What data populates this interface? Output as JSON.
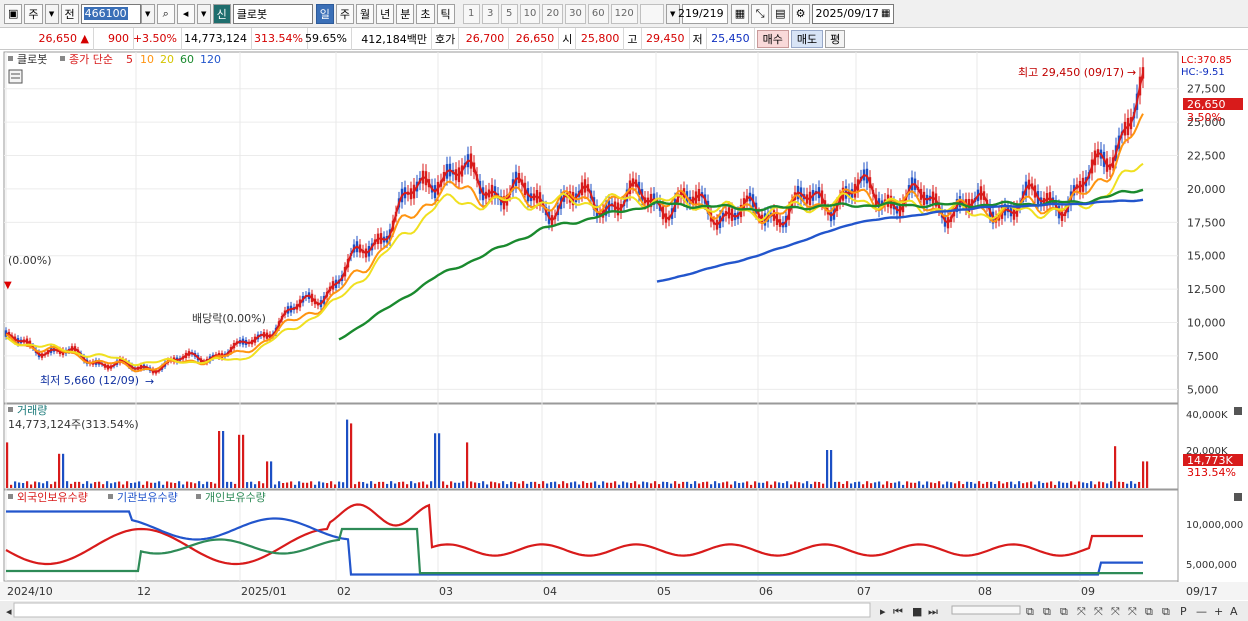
{
  "toolbar": {
    "market_btn": "주",
    "prev_btn": "전",
    "code": "466100",
    "new_badge": "신",
    "stock_name": "클로봇",
    "periods": [
      "일",
      "주",
      "월",
      "년",
      "분",
      "초",
      "틱"
    ],
    "minutes": [
      "1",
      "3",
      "5",
      "10",
      "20",
      "30",
      "60",
      "120"
    ],
    "count": "219/219",
    "date": "2025/09/17"
  },
  "quote": {
    "price": "26,650",
    "change": "900",
    "change_pct": "+3.50%",
    "volume": "14,773,124",
    "vol_ratio": "313.54%",
    "turnover": "59.65%",
    "amount": "412,184백만",
    "ask_label": "호가",
    "ask": "26,700",
    "bid": "26,650",
    "open_label": "시",
    "open": "25,800",
    "high_label": "고",
    "high": "29,450",
    "low_label": "저",
    "low": "25,450",
    "buy_btn": "매수",
    "sell_btn": "매도",
    "avg_btn": "평"
  },
  "legend": {
    "name": "클로봇",
    "title": "종가 단순",
    "ma": [
      {
        "label": "5",
        "color": "#d81b1b"
      },
      {
        "label": "10",
        "color": "#ff9410"
      },
      {
        "label": "20",
        "color": "#f0e020"
      },
      {
        "label": "60",
        "color": "#1a8a2e"
      },
      {
        "label": "120",
        "color": "#2255cc"
      }
    ]
  },
  "annotations": {
    "high_note": "최고 29,450 (09/17)",
    "low_note": "최저 5,660 (12/09)",
    "start_note": "(0.00%)",
    "dividend_note": "배당락(0.00%)",
    "lc": "LC:370.85",
    "hc": "HC:-9.51",
    "price_tag": "26,650",
    "pct_tag": "3.50%"
  },
  "price_axis": [
    "27,500",
    "25,000",
    "22,500",
    "20,000",
    "17,500",
    "15,000",
    "12,500",
    "10,000",
    "7,500",
    "5,000"
  ],
  "volume_panel": {
    "title": "거래량",
    "value": "14,773,124주(313.54%)",
    "axis": [
      "40,000K",
      "20,000K"
    ],
    "tag": "14,773K",
    "tag_pct": "313.54%"
  },
  "holding_panel": {
    "series": [
      {
        "name": "외국인보유수량",
        "color": "#d81b1b"
      },
      {
        "name": "기관보유수량",
        "color": "#2255cc"
      },
      {
        "name": "개인보유수량",
        "color": "#2e8b57"
      }
    ],
    "axis": [
      "10,000,000",
      "5,000,000"
    ]
  },
  "time_axis": [
    "2024/10",
    "12",
    "2025/01",
    "02",
    "03",
    "04",
    "05",
    "06",
    "07",
    "08",
    "09"
  ],
  "time_axis_end": "09/17",
  "chart_data": {
    "type": "line",
    "title": "클로봇",
    "x": [
      "2024/10",
      "12",
      "2025/01",
      "02",
      "03",
      "04",
      "05",
      "06",
      "07",
      "08",
      "09",
      "09/17"
    ],
    "series": [
      {
        "name": "5",
        "values": [
          8700,
          6500,
          8000,
          13000,
          21500,
          19000,
          19200,
          18000,
          19800,
          18500,
          19500,
          27000
        ]
      },
      {
        "name": "10",
        "values": [
          8700,
          6500,
          7600,
          12000,
          20000,
          19000,
          19300,
          18100,
          19500,
          18300,
          19000,
          24800
        ]
      },
      {
        "name": "20",
        "values": [
          8700,
          7000,
          7200,
          11500,
          19000,
          19000,
          19200,
          18200,
          19200,
          18200,
          18500,
          21800
        ]
      },
      {
        "name": "60",
        "values": [
          null,
          null,
          null,
          8600,
          13500,
          17000,
          18900,
          18500,
          18800,
          18800,
          19000,
          20000
        ]
      },
      {
        "name": "120",
        "values": [
          null,
          null,
          null,
          null,
          null,
          null,
          13000,
          15000,
          17500,
          18600,
          18900,
          19200
        ]
      }
    ],
    "ylim": [
      5000,
      29450
    ],
    "grid": true,
    "legend": "top-left"
  }
}
